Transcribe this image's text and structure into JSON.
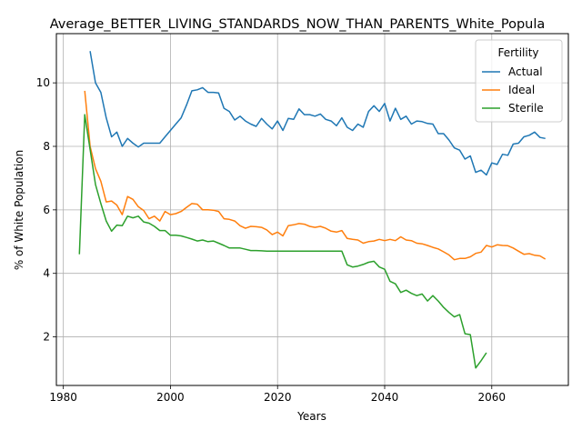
{
  "chart_data": {
    "type": "line",
    "title": "Average_BETTER_LIVING_STANDARDS_NOW_THAN_PARENTS_White_Popula",
    "xlabel": "Years",
    "ylabel": "% of White Population",
    "xlim": [
      1978.7,
      2074.3
    ],
    "ylim": [
      0.47,
      11.55
    ],
    "xticks": [
      1980,
      2000,
      2020,
      2040,
      2060
    ],
    "yticks": [
      2,
      4,
      6,
      8,
      10
    ],
    "grid": true,
    "legend": {
      "title": "Fertility",
      "position": "upper right"
    },
    "series": [
      {
        "name": "Actual",
        "color": "#1f77b4",
        "x": [
          1985,
          1986,
          1987,
          1988,
          1989,
          1990,
          1991,
          1992,
          1993,
          1994,
          1995,
          1996,
          1997,
          1998,
          1999,
          2000,
          2001,
          2002,
          2003,
          2004,
          2005,
          2006,
          2007,
          2008,
          2009,
          2010,
          2011,
          2012,
          2013,
          2014,
          2015,
          2016,
          2017,
          2018,
          2019,
          2020,
          2021,
          2022,
          2023,
          2024,
          2025,
          2026,
          2027,
          2028,
          2029,
          2030,
          2031,
          2032,
          2033,
          2034,
          2035,
          2036,
          2037,
          2038,
          2039,
          2040,
          2041,
          2042,
          2043,
          2044,
          2045,
          2046,
          2047,
          2048,
          2049,
          2050,
          2051,
          2052,
          2053,
          2054,
          2055,
          2056,
          2057,
          2058,
          2059,
          2060,
          2061,
          2062,
          2063,
          2064,
          2065,
          2066,
          2067,
          2068,
          2069,
          2070
        ],
        "values": [
          11.0,
          10.0,
          9.7,
          8.9,
          8.3,
          8.45,
          8.0,
          8.25,
          8.1,
          7.98,
          8.1,
          8.1,
          8.1,
          8.1,
          8.3,
          8.5,
          8.7,
          8.9,
          9.3,
          9.75,
          9.78,
          9.85,
          9.7,
          9.7,
          9.68,
          9.2,
          9.1,
          8.83,
          8.95,
          8.8,
          8.7,
          8.63,
          8.88,
          8.7,
          8.55,
          8.8,
          8.5,
          8.88,
          8.85,
          9.18,
          9.0,
          9.0,
          8.95,
          9.02,
          8.85,
          8.8,
          8.65,
          8.9,
          8.6,
          8.5,
          8.7,
          8.6,
          9.1,
          9.28,
          9.1,
          9.35,
          8.8,
          9.2,
          8.85,
          8.95,
          8.7,
          8.8,
          8.78,
          8.72,
          8.7,
          8.4,
          8.4,
          8.2,
          7.95,
          7.88,
          7.6,
          7.7,
          7.18,
          7.25,
          7.1,
          7.48,
          7.43,
          7.75,
          7.72,
          8.07,
          8.1,
          8.3,
          8.35,
          8.45,
          8.28,
          8.25
        ]
      },
      {
        "name": "Ideal",
        "color": "#ff7f0e",
        "x": [
          1984,
          1985,
          1986,
          1987,
          1988,
          1989,
          1990,
          1991,
          1992,
          1993,
          1994,
          1995,
          1996,
          1997,
          1998,
          1999,
          2000,
          2001,
          2002,
          2003,
          2004,
          2005,
          2006,
          2007,
          2008,
          2009,
          2010,
          2011,
          2012,
          2013,
          2014,
          2015,
          2016,
          2017,
          2018,
          2019,
          2020,
          2021,
          2022,
          2023,
          2024,
          2025,
          2026,
          2027,
          2028,
          2029,
          2030,
          2031,
          2032,
          2033,
          2034,
          2035,
          2036,
          2037,
          2038,
          2039,
          2040,
          2041,
          2042,
          2043,
          2044,
          2045,
          2046,
          2047,
          2048,
          2049,
          2050,
          2051,
          2052,
          2053,
          2054,
          2055,
          2056,
          2057,
          2058,
          2059,
          2060,
          2061,
          2062,
          2063,
          2064,
          2065,
          2066,
          2067,
          2068,
          2069,
          2070
        ],
        "values": [
          9.75,
          8.0,
          7.3,
          6.9,
          6.25,
          6.28,
          6.15,
          5.85,
          6.42,
          6.33,
          6.1,
          5.98,
          5.72,
          5.8,
          5.65,
          5.95,
          5.85,
          5.88,
          5.95,
          6.08,
          6.2,
          6.18,
          6.0,
          6.0,
          5.99,
          5.95,
          5.72,
          5.7,
          5.65,
          5.5,
          5.42,
          5.48,
          5.47,
          5.45,
          5.37,
          5.22,
          5.3,
          5.18,
          5.5,
          5.53,
          5.57,
          5.55,
          5.48,
          5.45,
          5.48,
          5.42,
          5.33,
          5.3,
          5.35,
          5.1,
          5.07,
          5.05,
          4.95,
          5.0,
          5.02,
          5.07,
          5.03,
          5.07,
          5.03,
          5.15,
          5.05,
          5.03,
          4.95,
          4.93,
          4.88,
          4.82,
          4.77,
          4.68,
          4.58,
          4.43,
          4.47,
          4.47,
          4.52,
          4.63,
          4.67,
          4.88,
          4.83,
          4.9,
          4.88,
          4.87,
          4.8,
          4.7,
          4.6,
          4.62,
          4.57,
          4.55,
          4.45
        ]
      },
      {
        "name": "Sterile",
        "color": "#2ca02c",
        "x": [
          1983,
          1984,
          1985,
          1986,
          1987,
          1988,
          1989,
          1990,
          1991,
          1992,
          1993,
          1994,
          1995,
          1996,
          1997,
          1998,
          1999,
          2000,
          2001,
          2002,
          2003,
          2004,
          2005,
          2006,
          2007,
          2008,
          2009,
          2010,
          2011,
          2012,
          2013,
          2014,
          2015,
          2016,
          2017,
          2018,
          2019,
          2020,
          2021,
          2022,
          2023,
          2024,
          2025,
          2026,
          2027,
          2028,
          2029,
          2030,
          2031,
          2032,
          2033,
          2034,
          2035,
          2036,
          2037,
          2038,
          2039,
          2040,
          2041,
          2042,
          2043,
          2044,
          2045,
          2046,
          2047,
          2048,
          2049,
          2050,
          2051,
          2052,
          2053,
          2054,
          2055,
          2056,
          2057,
          2058,
          2059
        ],
        "values": [
          4.6,
          9.0,
          7.9,
          6.8,
          6.2,
          5.65,
          5.33,
          5.52,
          5.5,
          5.8,
          5.75,
          5.8,
          5.62,
          5.58,
          5.48,
          5.35,
          5.35,
          5.2,
          5.2,
          5.18,
          5.13,
          5.08,
          5.02,
          5.05,
          5.0,
          5.02,
          4.95,
          4.88,
          4.8,
          4.8,
          4.8,
          4.76,
          4.72,
          4.72,
          4.71,
          4.7,
          4.7,
          4.7,
          4.7,
          4.7,
          4.7,
          4.7,
          4.7,
          4.7,
          4.7,
          4.7,
          4.7,
          4.7,
          4.7,
          4.7,
          4.27,
          4.2,
          4.23,
          4.28,
          4.35,
          4.38,
          4.2,
          4.13,
          3.75,
          3.67,
          3.4,
          3.47,
          3.37,
          3.3,
          3.35,
          3.13,
          3.3,
          3.13,
          2.93,
          2.77,
          2.63,
          2.7,
          2.1,
          2.07,
          1.02,
          1.25,
          1.5
        ]
      }
    ]
  }
}
